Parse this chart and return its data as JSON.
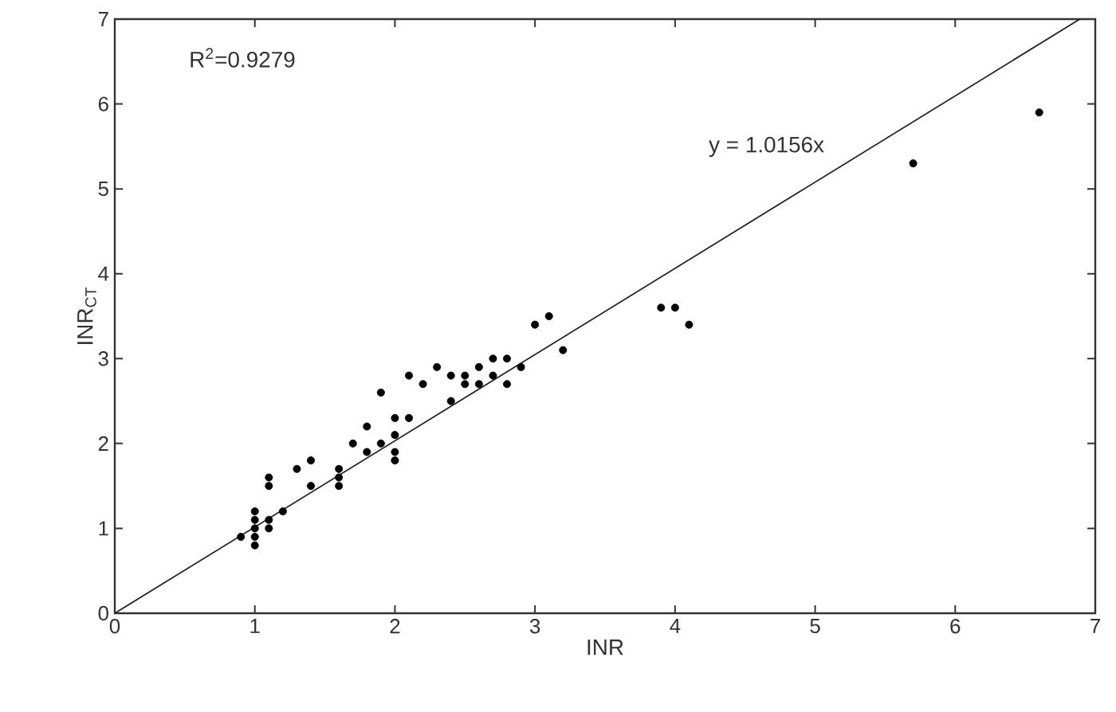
{
  "chart_data": {
    "type": "scatter",
    "xlabel": "INR",
    "ylabel": "INR$_{CT}$",
    "annotations": [
      "R$^{2}$=0.9279",
      "y = 1.0156x"
    ],
    "xlim": [
      0,
      7
    ],
    "ylim": [
      0,
      7
    ],
    "xticks": [
      0,
      1,
      2,
      3,
      4,
      5,
      6,
      7
    ],
    "yticks": [
      0,
      1,
      2,
      3,
      4,
      5,
      6,
      7
    ],
    "grid": false,
    "series": [
      {
        "color": "#000000",
        "marker": "circle",
        "x": [
          0.9,
          1.0,
          1.0,
          1.0,
          1.0,
          1.0,
          1.1,
          1.1,
          1.1,
          1.1,
          1.2,
          1.3,
          1.4,
          1.4,
          1.6,
          1.6,
          1.6,
          1.7,
          1.8,
          1.8,
          1.9,
          1.9,
          2.0,
          2.0,
          2.0,
          2.0,
          2.1,
          2.1,
          2.2,
          2.3,
          2.4,
          2.4,
          2.5,
          2.5,
          2.6,
          2.6,
          2.7,
          2.7,
          2.8,
          2.8,
          2.9,
          3.0,
          3.1,
          3.2,
          3.9,
          4.0,
          4.1,
          5.7,
          6.6
        ],
        "values": [
          0.9,
          0.8,
          0.9,
          1.0,
          1.1,
          1.2,
          1.0,
          1.1,
          1.5,
          1.6,
          1.2,
          1.7,
          1.8,
          1.5,
          1.5,
          1.6,
          1.7,
          2.0,
          1.9,
          2.2,
          2.6,
          2.0,
          1.8,
          1.9,
          2.1,
          2.3,
          2.3,
          2.8,
          2.7,
          2.9,
          2.5,
          2.8,
          2.7,
          2.8,
          2.7,
          2.9,
          2.8,
          3.0,
          2.7,
          3.0,
          2.9,
          3.4,
          3.5,
          3.1,
          3.6,
          3.6,
          3.4,
          5.3,
          5.9
        ]
      },
      {
        "type": "line",
        "color": "#222222",
        "marker": "none",
        "x": [
          0,
          6.89
        ],
        "values": [
          0,
          7.0
        ]
      }
    ]
  }
}
